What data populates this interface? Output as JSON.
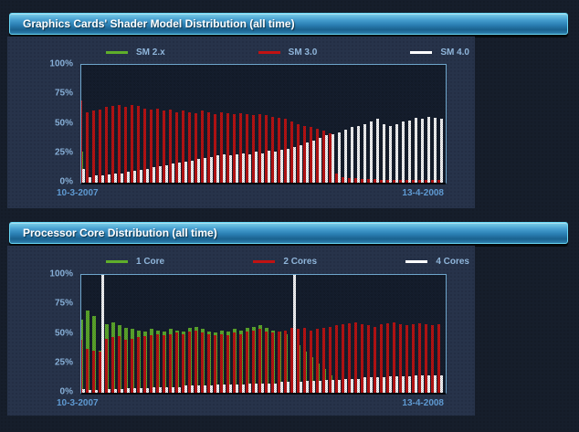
{
  "page": {
    "background_color": "#161e2b",
    "panel_color": "#27334a",
    "header_accent": "#68d6f4",
    "text_accent": "#8fb5da"
  },
  "panels": [
    {
      "title": "Graphics Cards' Shader Model Distribution (all time)",
      "legend": [
        {
          "label": "SM 2.x",
          "color": "#5fae2a"
        },
        {
          "label": "SM 3.0",
          "color": "#c11212"
        },
        {
          "label": "SM 4.0",
          "color": "#ffffff"
        }
      ],
      "y_ticks": [
        "100%",
        "75%",
        "50%",
        "25%",
        "0%"
      ],
      "x_start": "10-3-2007",
      "x_end": "13-4-2008"
    },
    {
      "title": "Processor Core Distribution (all time)",
      "legend": [
        {
          "label": "1 Core",
          "color": "#5fae2a"
        },
        {
          "label": "2 Cores",
          "color": "#c11212"
        },
        {
          "label": "4 Cores",
          "color": "#ffffff"
        }
      ],
      "y_ticks": [
        "100%",
        "75%",
        "50%",
        "25%",
        "0%"
      ],
      "x_start": "10-3-2007",
      "x_end": "13-4-2008"
    }
  ],
  "chart_data": [
    {
      "type": "bar",
      "title": "Graphics Cards' Shader Model Distribution (all time)",
      "ylim": [
        0,
        100
      ],
      "grid": false,
      "legend_position": "top",
      "x_range": [
        "10-3-2007",
        "13-4-2008"
      ],
      "x_unit": "weekly survey samples (values in %)",
      "note": "series painted over each other per sample: green behind, red, then white in front",
      "series": [
        {
          "name": "SM 2.x",
          "color": "#5fae2a",
          "values": [
            26,
            2,
            2,
            2,
            2,
            2,
            2,
            2,
            2,
            2,
            1,
            1,
            1,
            1,
            1,
            1,
            1,
            1,
            1,
            1,
            1,
            1,
            1,
            1,
            1,
            1,
            1,
            1,
            1,
            1,
            1,
            1,
            1,
            1,
            1,
            1,
            1,
            1,
            1,
            1,
            1,
            1,
            1,
            1,
            1,
            1,
            1,
            1,
            1,
            1,
            1,
            1,
            1,
            1,
            1,
            1,
            1
          ]
        },
        {
          "name": "SM 3.0",
          "color": "#c11212",
          "values": [
            70,
            60,
            61,
            62,
            64,
            65,
            66,
            64,
            66,
            65,
            63,
            62,
            63,
            61,
            62,
            60,
            61,
            60,
            59,
            61,
            60,
            58,
            60,
            59,
            58,
            59,
            58,
            57,
            58,
            57,
            56,
            55,
            54,
            52,
            50,
            48,
            47,
            46,
            44,
            42,
            8,
            5,
            4,
            4,
            3,
            3,
            3,
            2,
            2,
            2,
            2,
            2,
            2,
            2,
            2,
            2,
            2
          ]
        },
        {
          "name": "SM 4.0",
          "color": "#ffffff",
          "values": [
            12,
            5,
            6,
            6,
            7,
            8,
            8,
            9,
            10,
            11,
            12,
            13,
            14,
            15,
            16,
            17,
            18,
            19,
            20,
            21,
            22,
            23,
            24,
            23,
            24,
            25,
            24,
            26,
            25,
            27,
            26,
            28,
            29,
            30,
            32,
            34,
            36,
            38,
            40,
            41,
            43,
            45,
            47,
            48,
            50,
            52,
            54,
            50,
            48,
            50,
            52,
            53,
            55,
            54,
            56,
            55,
            54
          ]
        }
      ]
    },
    {
      "type": "bar",
      "title": "Processor Core Distribution (all time)",
      "ylim": [
        0,
        100
      ],
      "grid": false,
      "legend_position": "top",
      "x_range": [
        "10-3-2007",
        "13-4-2008"
      ],
      "x_unit": "weekly survey samples (values in %)",
      "note": "full-height white spikes (100%) occur at samples 4 and 34; green visible early as tips above red",
      "series": [
        {
          "name": "1 Core",
          "color": "#5fae2a",
          "values": [
            62,
            70,
            65,
            36,
            58,
            60,
            57,
            55,
            54,
            53,
            52,
            54,
            53,
            52,
            54,
            53,
            52,
            55,
            56,
            54,
            52,
            51,
            53,
            52,
            54,
            53,
            55,
            56,
            57,
            55,
            53,
            52,
            50,
            45,
            40,
            35,
            30,
            25,
            20,
            15,
            10,
            8,
            6,
            5,
            4,
            4,
            3,
            3,
            3,
            3,
            2,
            2,
            2,
            2,
            2,
            2,
            2
          ]
        },
        {
          "name": "2 Cores",
          "color": "#c11212",
          "values": [
            45,
            37,
            36,
            35,
            46,
            47,
            48,
            45,
            46,
            47,
            48,
            49,
            50,
            49,
            50,
            51,
            50,
            52,
            53,
            51,
            50,
            49,
            50,
            49,
            51,
            50,
            52,
            53,
            54,
            52,
            51,
            52,
            53,
            55,
            54,
            55,
            53,
            54,
            55,
            56,
            57,
            58,
            59,
            60,
            58,
            57,
            56,
            58,
            59,
            60,
            58,
            57,
            58,
            59,
            58,
            57,
            58
          ]
        },
        {
          "name": "4 Cores",
          "color": "#ffffff",
          "values": [
            3,
            2,
            2,
            100,
            3,
            3,
            3,
            4,
            4,
            4,
            4,
            5,
            5,
            5,
            5,
            5,
            6,
            6,
            6,
            6,
            6,
            7,
            7,
            7,
            7,
            7,
            8,
            8,
            8,
            8,
            8,
            9,
            9,
            100,
            9,
            10,
            10,
            10,
            11,
            11,
            11,
            12,
            12,
            12,
            13,
            13,
            13,
            13,
            14,
            14,
            14,
            14,
            15,
            15,
            15,
            15,
            15
          ]
        }
      ]
    }
  ]
}
